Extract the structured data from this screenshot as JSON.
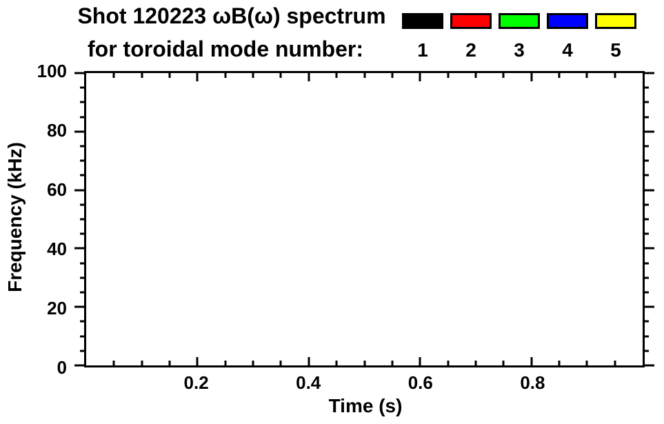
{
  "title": {
    "line1": "Shot 120223 ωB(ω) spectrum",
    "line2": "for toroidal mode number:"
  },
  "legend": {
    "entries": [
      {
        "label": "1",
        "color": "#000000"
      },
      {
        "label": "2",
        "color": "#ff0000"
      },
      {
        "label": "3",
        "color": "#00ff00"
      },
      {
        "label": "4",
        "color": "#0000ff"
      },
      {
        "label": "5",
        "color": "#ffff00"
      }
    ]
  },
  "chart_data": {
    "type": "line",
    "title": "Shot 120223 ωB(ω) spectrum for toroidal mode number: 1 2 3 4 5",
    "xlabel": "Time (s)",
    "ylabel": "Frequency (kHz)",
    "xlim": [
      0.0,
      1.0
    ],
    "ylim": [
      0,
      100
    ],
    "x_major_ticks": [
      0.2,
      0.4,
      0.6,
      0.8
    ],
    "x_major_tick_labels": [
      "0.2",
      "0.4",
      "0.6",
      "0.8"
    ],
    "x_minor_tick_interval": 0.05,
    "y_major_ticks": [
      0,
      20,
      40,
      60,
      80,
      100
    ],
    "y_major_tick_labels": [
      "0",
      "20",
      "40",
      "60",
      "80",
      "100"
    ],
    "y_minor_tick_interval": 5,
    "grid": false,
    "legend_position": "top-right",
    "frame_color": "#000000",
    "background_color": "#ffffff",
    "plot_area_empty": true,
    "series": [
      {
        "name": "1",
        "color": "#000000",
        "x": [],
        "y": []
      },
      {
        "name": "2",
        "color": "#ff0000",
        "x": [],
        "y": []
      },
      {
        "name": "3",
        "color": "#00ff00",
        "x": [],
        "y": []
      },
      {
        "name": "4",
        "color": "#0000ff",
        "x": [],
        "y": []
      },
      {
        "name": "5",
        "color": "#ffff00",
        "x": [],
        "y": []
      }
    ]
  }
}
